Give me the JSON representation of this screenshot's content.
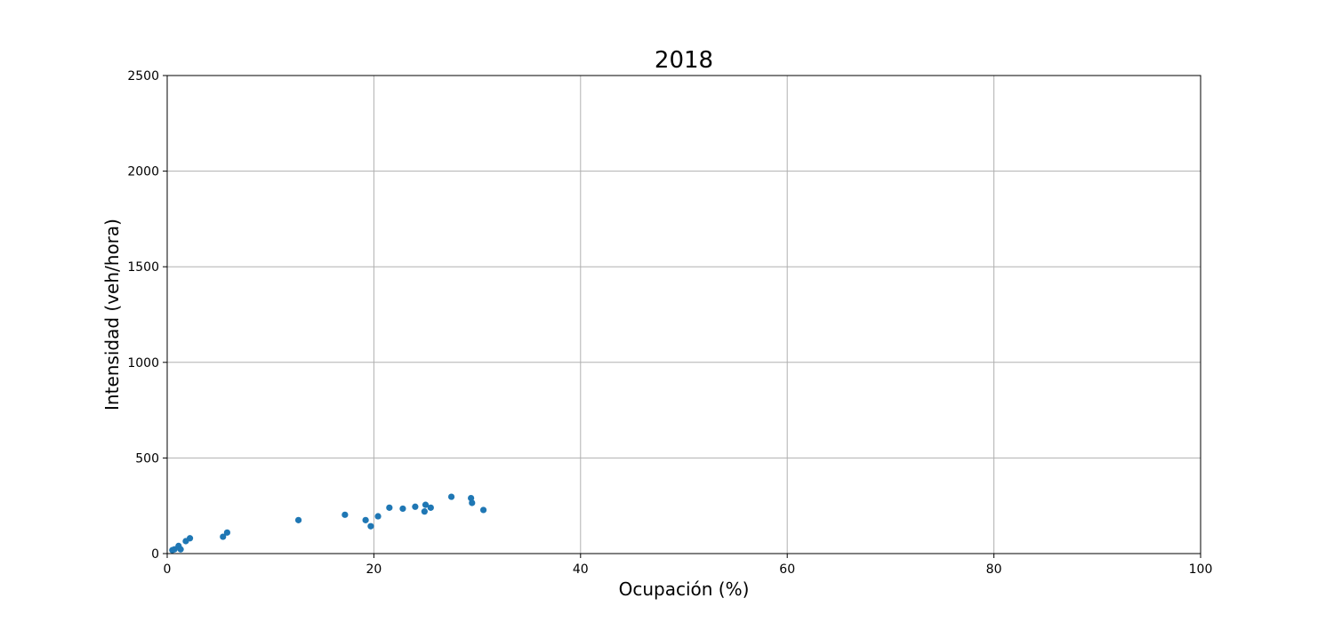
{
  "chart_data": {
    "type": "scatter",
    "title": "2018",
    "xlabel": "Ocupación (%)",
    "ylabel": "Intensidad (veh/hora)",
    "xlim": [
      0,
      100
    ],
    "ylim": [
      0,
      2500
    ],
    "xticks": [
      0,
      20,
      40,
      60,
      80,
      100
    ],
    "yticks": [
      0,
      500,
      1000,
      1500,
      2000,
      2500
    ],
    "grid": true,
    "marker_color": "#1f77b4",
    "points": [
      {
        "x": 0.5,
        "y": 18
      },
      {
        "x": 0.7,
        "y": 22
      },
      {
        "x": 1.1,
        "y": 40
      },
      {
        "x": 1.3,
        "y": 22
      },
      {
        "x": 1.8,
        "y": 65
      },
      {
        "x": 2.2,
        "y": 80
      },
      {
        "x": 5.4,
        "y": 88
      },
      {
        "x": 5.8,
        "y": 110
      },
      {
        "x": 12.7,
        "y": 175
      },
      {
        "x": 17.2,
        "y": 203
      },
      {
        "x": 19.2,
        "y": 175
      },
      {
        "x": 19.7,
        "y": 143
      },
      {
        "x": 20.4,
        "y": 195
      },
      {
        "x": 21.5,
        "y": 240
      },
      {
        "x": 22.8,
        "y": 235
      },
      {
        "x": 24.0,
        "y": 245
      },
      {
        "x": 24.9,
        "y": 220
      },
      {
        "x": 25.0,
        "y": 255
      },
      {
        "x": 25.5,
        "y": 240
      },
      {
        "x": 27.5,
        "y": 297
      },
      {
        "x": 29.4,
        "y": 290
      },
      {
        "x": 29.5,
        "y": 265
      },
      {
        "x": 30.6,
        "y": 228
      }
    ]
  }
}
